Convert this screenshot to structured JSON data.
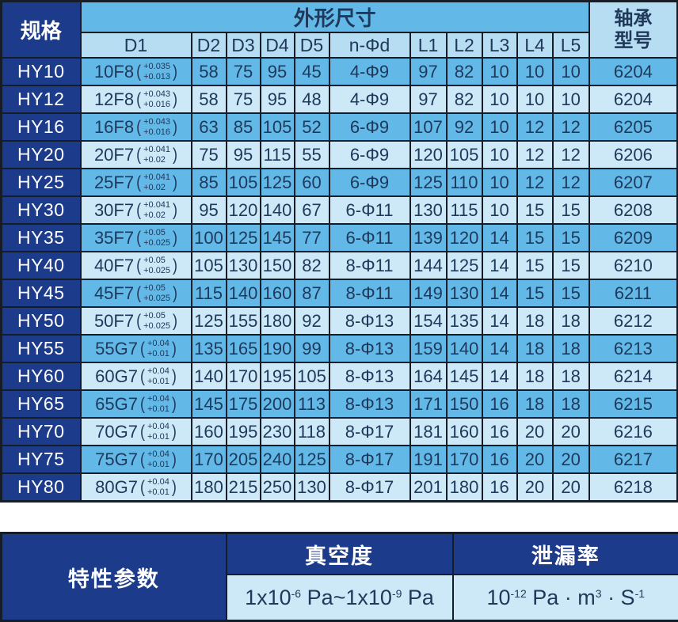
{
  "colors": {
    "dark_blue": "#1c3b8b",
    "medium_blue": "#62b9e7",
    "light_blue": "#cde9f8",
    "subheader_blue": "#b7ddf2",
    "border": "#151e28",
    "text_navy": "#20395b"
  },
  "main_table": {
    "spec_header": "规格",
    "dims_header": "外形尺寸",
    "bearing_header_line1": "轴承",
    "bearing_header_line2": "型号",
    "columns": [
      "D1",
      "D2",
      "D3",
      "D4",
      "D5",
      "n-Φd",
      "L1",
      "L2",
      "L3",
      "L4",
      "L5"
    ],
    "rows": [
      {
        "spec": "HY10",
        "d1": "10F8",
        "tol_u": "+0.035",
        "tol_l": "+0.013",
        "d2": "58",
        "d3": "75",
        "d4": "95",
        "d5": "45",
        "nd": "4-Φ9",
        "l1": "97",
        "l2": "82",
        "l3": "10",
        "l4": "10",
        "l5": "10",
        "bearing": "6204"
      },
      {
        "spec": "HY12",
        "d1": "12F8",
        "tol_u": "+0.043",
        "tol_l": "+0.016",
        "d2": "58",
        "d3": "75",
        "d4": "95",
        "d5": "48",
        "nd": "4-Φ9",
        "l1": "97",
        "l2": "82",
        "l3": "10",
        "l4": "10",
        "l5": "10",
        "bearing": "6204"
      },
      {
        "spec": "HY16",
        "d1": "16F8",
        "tol_u": "+0.043",
        "tol_l": "+0.016",
        "d2": "63",
        "d3": "85",
        "d4": "105",
        "d5": "52",
        "nd": "6-Φ9",
        "l1": "107",
        "l2": "92",
        "l3": "10",
        "l4": "12",
        "l5": "12",
        "bearing": "6205"
      },
      {
        "spec": "HY20",
        "d1": "20F7",
        "tol_u": "+0.041",
        "tol_l": "+0.02",
        "d2": "75",
        "d3": "95",
        "d4": "115",
        "d5": "55",
        "nd": "6-Φ9",
        "l1": "120",
        "l2": "105",
        "l3": "10",
        "l4": "12",
        "l5": "12",
        "bearing": "6206"
      },
      {
        "spec": "HY25",
        "d1": "25F7",
        "tol_u": "+0.041",
        "tol_l": "+0.02",
        "d2": "85",
        "d3": "105",
        "d4": "125",
        "d5": "60",
        "nd": "6-Φ9",
        "l1": "125",
        "l2": "110",
        "l3": "10",
        "l4": "12",
        "l5": "12",
        "bearing": "6207"
      },
      {
        "spec": "HY30",
        "d1": "30F7",
        "tol_u": "+0.041",
        "tol_l": "+0.02",
        "d2": "95",
        "d3": "120",
        "d4": "140",
        "d5": "67",
        "nd": "6-Φ11",
        "l1": "130",
        "l2": "115",
        "l3": "10",
        "l4": "15",
        "l5": "15",
        "bearing": "6208"
      },
      {
        "spec": "HY35",
        "d1": "35F7",
        "tol_u": "+0.05",
        "tol_l": "+0.025",
        "d2": "100",
        "d3": "125",
        "d4": "145",
        "d5": "77",
        "nd": "6-Φ11",
        "l1": "139",
        "l2": "120",
        "l3": "14",
        "l4": "15",
        "l5": "15",
        "bearing": "6209"
      },
      {
        "spec": "HY40",
        "d1": "40F7",
        "tol_u": "+0.05",
        "tol_l": "+0.025",
        "d2": "105",
        "d3": "130",
        "d4": "150",
        "d5": "82",
        "nd": "8-Φ11",
        "l1": "144",
        "l2": "125",
        "l3": "14",
        "l4": "15",
        "l5": "15",
        "bearing": "6210"
      },
      {
        "spec": "HY45",
        "d1": "45F7",
        "tol_u": "+0.05",
        "tol_l": "+0.025",
        "d2": "115",
        "d3": "140",
        "d4": "160",
        "d5": "87",
        "nd": "8-Φ11",
        "l1": "149",
        "l2": "130",
        "l3": "14",
        "l4": "15",
        "l5": "15",
        "bearing": "6211"
      },
      {
        "spec": "HY50",
        "d1": "50F7",
        "tol_u": "+0.05",
        "tol_l": "+0.025",
        "d2": "125",
        "d3": "155",
        "d4": "180",
        "d5": "92",
        "nd": "8-Φ13",
        "l1": "154",
        "l2": "135",
        "l3": "14",
        "l4": "18",
        "l5": "18",
        "bearing": "6212"
      },
      {
        "spec": "HY55",
        "d1": "55G7",
        "tol_u": "+0.04",
        "tol_l": "+0.01",
        "d2": "135",
        "d3": "165",
        "d4": "190",
        "d5": "99",
        "nd": "8-Φ13",
        "l1": "159",
        "l2": "140",
        "l3": "14",
        "l4": "18",
        "l5": "18",
        "bearing": "6213"
      },
      {
        "spec": "HY60",
        "d1": "60G7",
        "tol_u": "+0.04",
        "tol_l": "+0.01",
        "d2": "140",
        "d3": "170",
        "d4": "195",
        "d5": "105",
        "nd": "8-Φ13",
        "l1": "164",
        "l2": "145",
        "l3": "14",
        "l4": "18",
        "l5": "18",
        "bearing": "6214"
      },
      {
        "spec": "HY65",
        "d1": "65G7",
        "tol_u": "+0.04",
        "tol_l": "+0.01",
        "d2": "145",
        "d3": "175",
        "d4": "200",
        "d5": "113",
        "nd": "8-Φ13",
        "l1": "171",
        "l2": "150",
        "l3": "16",
        "l4": "18",
        "l5": "18",
        "bearing": "6215"
      },
      {
        "spec": "HY70",
        "d1": "70G7",
        "tol_u": "+0.04",
        "tol_l": "+0.01",
        "d2": "160",
        "d3": "195",
        "d4": "230",
        "d5": "118",
        "nd": "8-Φ17",
        "l1": "181",
        "l2": "160",
        "l3": "16",
        "l4": "20",
        "l5": "20",
        "bearing": "6216"
      },
      {
        "spec": "HY75",
        "d1": "75G7",
        "tol_u": "+0.04",
        "tol_l": "+0.01",
        "d2": "170",
        "d3": "205",
        "d4": "240",
        "d5": "125",
        "nd": "8-Φ17",
        "l1": "191",
        "l2": "170",
        "l3": "16",
        "l4": "20",
        "l5": "20",
        "bearing": "6217"
      },
      {
        "spec": "HY80",
        "d1": "80G7",
        "tol_u": "+0.04",
        "tol_l": "+0.01",
        "d2": "180",
        "d3": "215",
        "d4": "250",
        "d5": "130",
        "nd": "8-Φ17",
        "l1": "201",
        "l2": "180",
        "l3": "16",
        "l4": "20",
        "l5": "20",
        "bearing": "6218"
      }
    ]
  },
  "params_table": {
    "title": "特性参数",
    "vacuum_label": "真空度",
    "leak_label": "泄漏率",
    "vacuum_value_parts": [
      {
        "t": "1x10"
      },
      {
        "t": "-6",
        "sup": true
      },
      {
        "t": " Pa~1x10"
      },
      {
        "t": "-9",
        "sup": true
      },
      {
        "t": " Pa"
      }
    ],
    "leak_value_parts": [
      {
        "t": "10"
      },
      {
        "t": "-12",
        "sup": true
      },
      {
        "t": " Pa · m"
      },
      {
        "t": "3",
        "sup": true
      },
      {
        "t": " · S"
      },
      {
        "t": "-1",
        "sup": true
      }
    ]
  }
}
